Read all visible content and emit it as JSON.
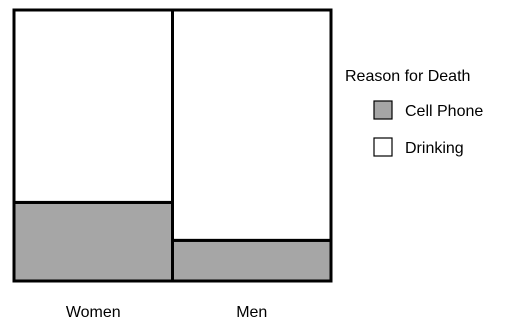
{
  "chart_data": {
    "type": "bar",
    "subtype": "stacked-100-mosaic",
    "categories": [
      "Women",
      "Men"
    ],
    "category_widths": [
      0.5,
      0.5
    ],
    "series": [
      {
        "name": "Cell Phone",
        "values": [
          0.29,
          0.15
        ],
        "color": "#a6a6a6"
      },
      {
        "name": "Drinking",
        "values": [
          0.71,
          0.85
        ],
        "color": "#ffffff"
      }
    ],
    "legend": {
      "title": "Reason for Death",
      "placement": "right"
    },
    "grid": false,
    "ylim": [
      0,
      1
    ]
  }
}
